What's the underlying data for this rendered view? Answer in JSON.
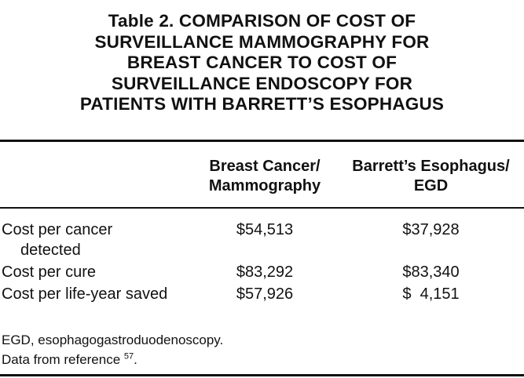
{
  "title": {
    "lines": [
      "Table 2.   COMPARISON OF COST OF",
      "SURVEILLANCE MAMMOGRAPHY FOR",
      "BREAST CANCER TO COST OF",
      "SURVEILLANCE ENDOSCOPY FOR",
      "PATIENTS WITH BARRETT’S ESOPHAGUS"
    ]
  },
  "columns": [
    {
      "lines": [
        "Breast Cancer/",
        "Mammography"
      ]
    },
    {
      "lines": [
        "Barrett’s Esophagus/",
        "EGD"
      ]
    }
  ],
  "rows": [
    {
      "label": [
        "Cost per cancer",
        "detected"
      ],
      "values": [
        "$54,513",
        "$37,928"
      ]
    },
    {
      "label": [
        "Cost per cure"
      ],
      "values": [
        "$83,292",
        "$83,340"
      ]
    },
    {
      "label": [
        "Cost per life-year saved"
      ],
      "values": [
        "$57,926",
        "$  4,151"
      ]
    }
  ],
  "footnotes": {
    "abbreviation": "EGD, esophagogastroduodenoscopy.",
    "source_text": "Data from reference ",
    "source_ref": "57",
    "source_end": "."
  }
}
